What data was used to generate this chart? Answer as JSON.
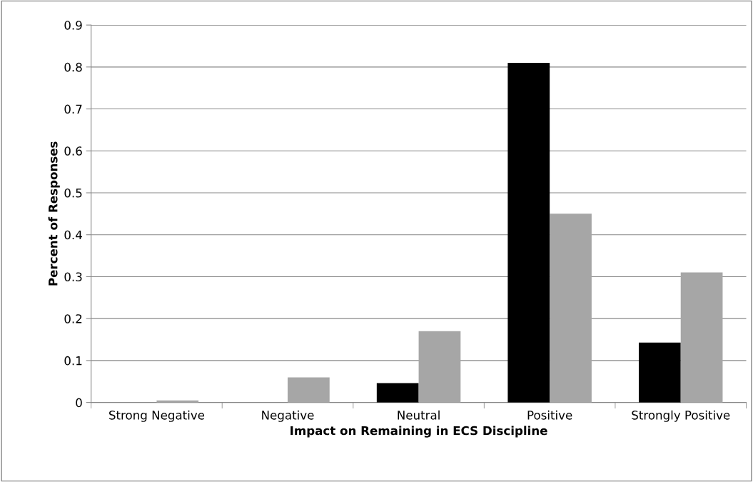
{
  "chart_data": {
    "type": "bar",
    "xlabel": "Impact on Remaining in ECS Discipline",
    "ylabel": "Percent of Responses",
    "categories": [
      "Strong Negative",
      "Negative",
      "Neutral",
      "Positive",
      "Strongly Positive"
    ],
    "series": [
      {
        "color": "#000000",
        "values": [
          0,
          0,
          0.046,
          0.81,
          0.143
        ]
      },
      {
        "color": "#a6a6a6",
        "values": [
          0.005,
          0.06,
          0.17,
          0.45,
          0.31
        ]
      }
    ],
    "ylim": [
      0,
      0.9
    ],
    "yticks": [
      {
        "value": 0,
        "label": "0"
      },
      0.1,
      0.2,
      0.3,
      0.4,
      0.5,
      0.6,
      0.7,
      0.8,
      0.9
    ],
    "grid": "y",
    "legend": false
  }
}
